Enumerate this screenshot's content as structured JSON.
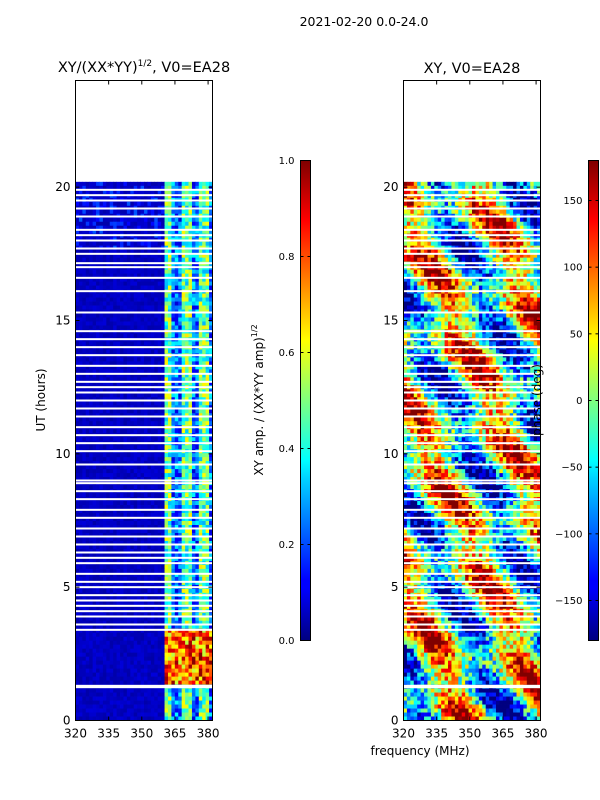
{
  "suptitle": "2021-02-20 0.0-24.0",
  "xlabel": "frequency (MHz)",
  "chart_data": [
    {
      "type": "heatmap",
      "title": "XY/(XX*YY)",
      "title_exponent": "1/2",
      "title_suffix": ", V0=EA28",
      "xlabel": "frequency (MHz)",
      "ylabel": "UT (hours)",
      "xlim": [
        320,
        382
      ],
      "ylim": [
        0,
        24
      ],
      "xticks": [
        320,
        335,
        350,
        365,
        380
      ],
      "yticks": [
        0,
        5,
        10,
        15,
        20
      ],
      "data_extent_hours": [
        0,
        20.2
      ],
      "colormap": "jet",
      "colorbar": {
        "label": "XY amp. / (XX*YY amp)",
        "label_exponent": "1/2",
        "range": [
          0.0,
          1.0
        ],
        "ticks": [
          "0.0",
          "0.2",
          "0.4",
          "0.6",
          "0.8",
          "1.0"
        ]
      },
      "description": "Normalized XY amplitude, low (~0.05) below 360 MHz, mixed 0.3-0.6 above 360 MHz, high (0.7-1.0) between 1.3-3.5 UT above 360 MHz"
    },
    {
      "type": "heatmap",
      "title": "XY, V0=EA28",
      "xlabel": "frequency (MHz)",
      "ylabel": "",
      "xlim": [
        320,
        382
      ],
      "ylim": [
        0,
        24
      ],
      "xticks": [
        320,
        335,
        350,
        365,
        380
      ],
      "yticks": [
        0,
        5,
        10,
        15,
        20
      ],
      "data_extent_hours": [
        0,
        20.2
      ],
      "colormap": "jet",
      "colorbar": {
        "label": "phase (deg)",
        "range": [
          -180,
          180
        ],
        "ticks": [
          "150",
          "100",
          "50",
          "0",
          "−50",
          "−100",
          "−150"
        ]
      },
      "description": "XY phase in degrees across full band, varying -180 to 180"
    }
  ],
  "gap_hours": [
    1.25,
    1.3,
    3.4,
    3.6,
    3.9,
    4.1,
    4.3,
    4.5,
    4.7,
    5.0,
    5.2,
    5.5,
    5.9,
    6.1,
    6.3,
    6.6,
    6.9,
    7.2,
    7.6,
    7.9,
    8.3,
    8.6,
    8.9,
    9.0,
    9.6,
    10.1,
    10.4,
    10.7,
    11.0,
    11.4,
    11.7,
    12.0,
    12.3,
    12.5,
    12.7,
    13.0,
    13.3,
    13.7,
    14.0,
    14.3,
    14.6,
    15.3,
    16.1,
    16.6,
    17.0,
    17.15,
    17.5,
    17.7,
    18.0,
    18.2,
    18.4,
    18.9,
    19.2,
    19.5,
    19.7,
    19.9
  ]
}
